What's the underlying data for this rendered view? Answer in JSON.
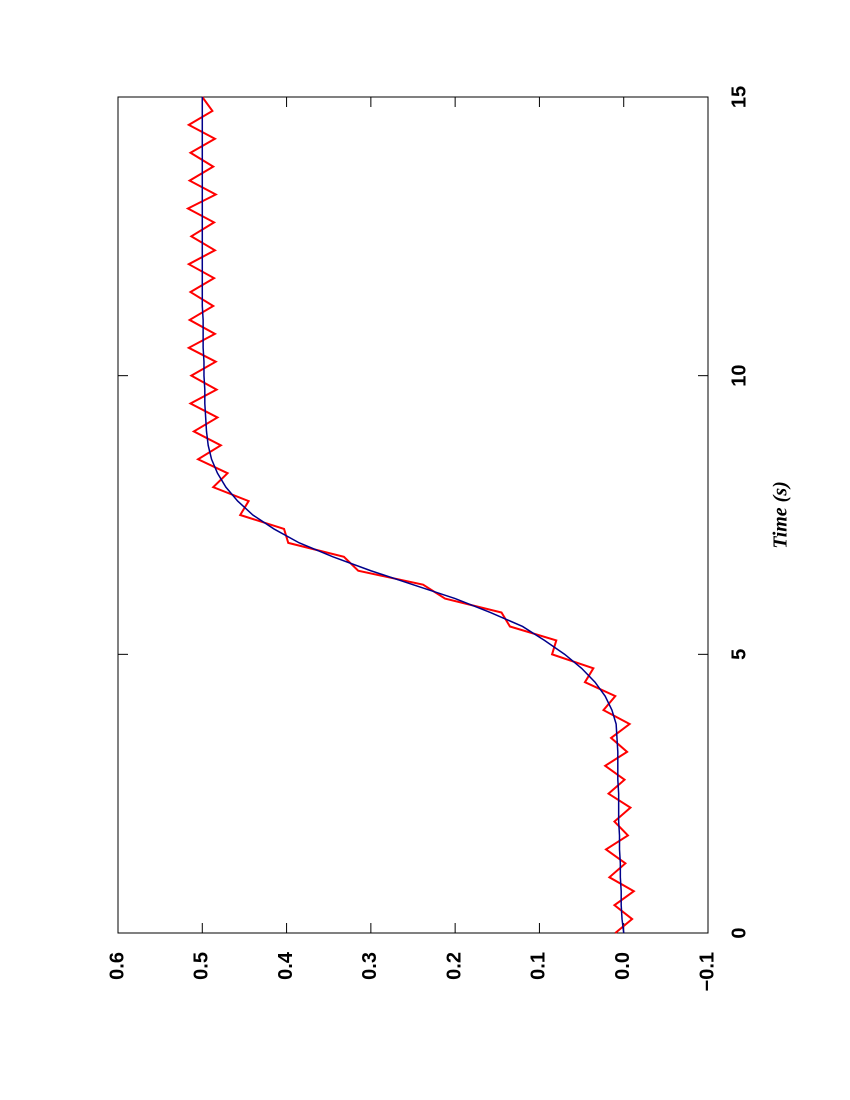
{
  "chart_data": {
    "type": "line",
    "xlabel": "Time (s)",
    "x": [
      0,
      0.25,
      0.5,
      0.75,
      1,
      1.25,
      1.5,
      1.75,
      2,
      2.25,
      2.5,
      2.75,
      3,
      3.25,
      3.5,
      3.75,
      4,
      4.25,
      4.5,
      4.75,
      5,
      5.25,
      5.5,
      5.75,
      6,
      6.25,
      6.5,
      6.75,
      7,
      7.25,
      7.5,
      7.75,
      8,
      8.25,
      8.5,
      8.75,
      9,
      9.25,
      9.5,
      9.75,
      10,
      10.25,
      10.5,
      10.75,
      11,
      11.25,
      11.5,
      11.75,
      12,
      12.25,
      12.5,
      12.75,
      13,
      13.25,
      13.5,
      13.75,
      14,
      14.25,
      14.5,
      14.75,
      15
    ],
    "series": [
      {
        "color": "#ff0000",
        "values": [
          0.01,
          -0.01,
          0.011,
          -0.012,
          0.017,
          -0.002,
          0.021,
          -0.005,
          0.011,
          -0.008,
          0.018,
          -0.001,
          0.022,
          -0.004,
          0.015,
          -0.007,
          0.024,
          0.01,
          0.046,
          0.036,
          0.085,
          0.08,
          0.135,
          0.145,
          0.212,
          0.238,
          0.315,
          0.332,
          0.398,
          0.403,
          0.455,
          0.445,
          0.487,
          0.47,
          0.505,
          0.478,
          0.51,
          0.482,
          0.514,
          0.483,
          0.513,
          0.484,
          0.516,
          0.485,
          0.515,
          0.487,
          0.514,
          0.486,
          0.516,
          0.485,
          0.513,
          0.486,
          0.517,
          0.484,
          0.515,
          0.487,
          0.514,
          0.485,
          0.516,
          0.488,
          0.5
        ]
      },
      {
        "color": "#00008b",
        "values": [
          0.0,
          0.002,
          0.003,
          0.003,
          0.004,
          0.004,
          0.005,
          0.005,
          0.006,
          0.006,
          0.006,
          0.007,
          0.007,
          0.007,
          0.008,
          0.009,
          0.014,
          0.022,
          0.034,
          0.05,
          0.07,
          0.094,
          0.12,
          0.158,
          0.2,
          0.25,
          0.3,
          0.345,
          0.385,
          0.415,
          0.44,
          0.458,
          0.472,
          0.482,
          0.489,
          0.493,
          0.495,
          0.496,
          0.497,
          0.497,
          0.498,
          0.498,
          0.499,
          0.499,
          0.499,
          0.5,
          0.5,
          0.5,
          0.5,
          0.5,
          0.5,
          0.5,
          0.5,
          0.5,
          0.5,
          0.5,
          0.5,
          0.5,
          0.5,
          0.5,
          0.5
        ]
      }
    ],
    "xlim": [
      0,
      15
    ],
    "xticks": [
      0,
      5,
      10,
      15
    ],
    "ylim": [
      -0.1,
      0.6
    ],
    "yticks": [
      {
        "value": -0.1,
        "label": "−0.1"
      },
      {
        "value": 0,
        "label": "0.0"
      },
      0.1,
      0.2,
      0.3,
      0.4,
      0.5,
      0.6
    ]
  }
}
